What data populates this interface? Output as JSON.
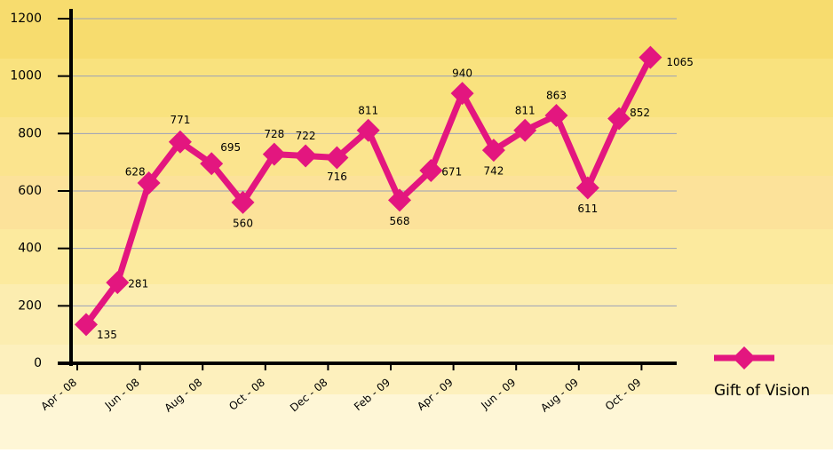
{
  "chart_data": {
    "type": "line",
    "categories": [
      "Apr - 08",
      null,
      "Jun - 08",
      null,
      "Aug - 08",
      null,
      "Oct - 08",
      null,
      "Dec - 08",
      null,
      "Feb - 09",
      null,
      "Apr - 09",
      null,
      "Jun - 09",
      null,
      "Aug - 09",
      null,
      "Oct - 09"
    ],
    "series": [
      {
        "name": "Gift of Vision",
        "color": "#e3167f",
        "values": [
          135,
          281,
          628,
          771,
          695,
          560,
          728,
          722,
          716,
          811,
          568,
          671,
          940,
          742,
          811,
          863,
          611,
          852,
          1065
        ]
      }
    ],
    "ylim": [
      0,
      1200
    ],
    "yticks": [
      0,
      200,
      400,
      600,
      800,
      1000,
      1200
    ],
    "grid": true,
    "legend": "right"
  }
}
